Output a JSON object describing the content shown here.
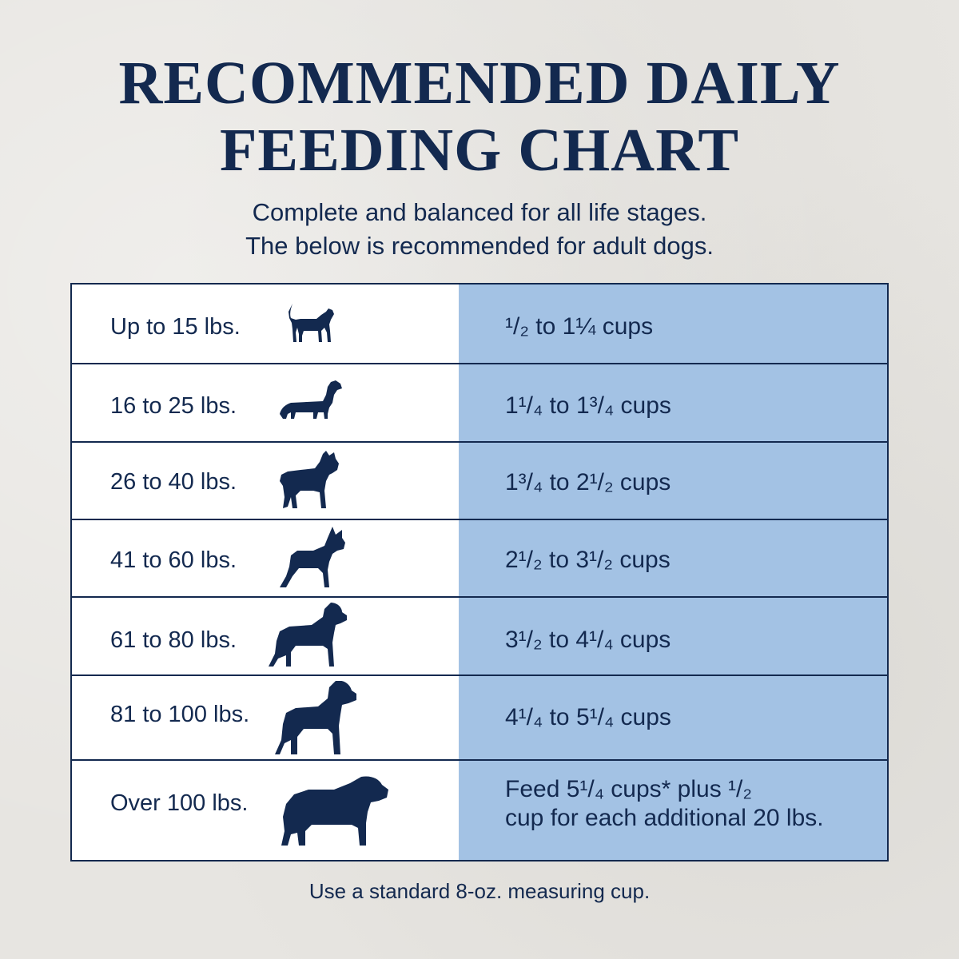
{
  "title_line1": "RECOMMENDED DAILY",
  "title_line2": "FEEDING CHART",
  "subtitle_line1": "Complete and balanced for all life stages.",
  "subtitle_line2": "The below is recommended for adult dogs.",
  "rows": [
    {
      "weight": "Up to 15 lbs.",
      "amount": "¹/₂ to 1¼ cups",
      "icon": "small-dog-icon"
    },
    {
      "weight": "16 to 25 lbs.",
      "amount": "1¹/₄ to 1³/₄ cups",
      "icon": "dachshund-icon"
    },
    {
      "weight": "26 to 40 lbs.",
      "amount": "1³/₄ to 2¹/₂ cups",
      "icon": "bulldog-icon"
    },
    {
      "weight": "41 to 60 lbs.",
      "amount": "2¹/₂ to 3¹/₂ cups",
      "icon": "boxer-icon"
    },
    {
      "weight": "61 to 80 lbs.",
      "amount": "3¹/₂ to 4¹/₄ cups",
      "icon": "rottweiler-icon"
    },
    {
      "weight": "81 to 100 lbs.",
      "amount": "4¹/₄ to 5¹/₄ cups",
      "icon": "large-dog-icon"
    },
    {
      "weight": "Over 100 lbs.",
      "amount_line1": "Feed 5¹/₄ cups* plus ¹/₂",
      "amount_line2": "cup for each additional 20 lbs.",
      "icon": "mastiff-icon"
    }
  ],
  "footnote": "Use a standard 8-oz. measuring cup.",
  "colors": {
    "navy": "#13294f",
    "amount_column": "#a3c2e4",
    "background": "#e7e5e1"
  }
}
